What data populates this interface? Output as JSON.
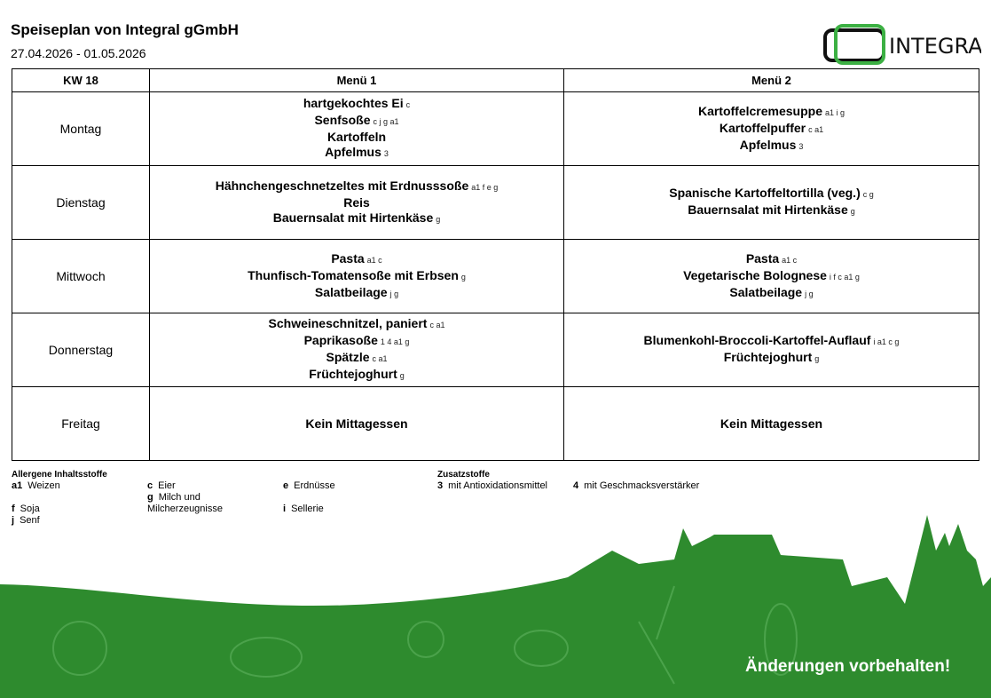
{
  "header": {
    "title": "Speiseplan von Integral gGmbH",
    "dates": "27.04.2026 - 01.05.2026",
    "logo_text": "INTEGRAL"
  },
  "table": {
    "columns": [
      "KW 18",
      "Menü 1",
      "Menü 2"
    ],
    "rows": [
      {
        "day": "Montag",
        "menu1": [
          {
            "name": "hartgekochtes Ei",
            "al": "c"
          },
          {
            "name": "Senfsoße",
            "al": "c j g a1"
          },
          {
            "name": "Kartoffeln",
            "al": ""
          },
          {
            "name": "Apfelmus",
            "al": "3"
          }
        ],
        "menu2": [
          {
            "name": "Kartoffelcremesuppe",
            "al": "a1 i g"
          },
          {
            "name": "Kartoffelpuffer",
            "al": "c a1"
          },
          {
            "name": "Apfelmus",
            "al": "3"
          }
        ]
      },
      {
        "day": "Dienstag",
        "menu1": [
          {
            "name": "Hähnchengeschnetzeltes mit Erdnusssoße",
            "al": "a1 f e g"
          },
          {
            "name": "Reis",
            "al": ""
          },
          {
            "name": "Bauernsalat mit Hirtenkäse",
            "al": "g"
          }
        ],
        "menu2": [
          {
            "name": "Spanische Kartoffeltortilla (veg.)",
            "al": "c g"
          },
          {
            "name": "Bauernsalat mit Hirtenkäse",
            "al": "g"
          }
        ]
      },
      {
        "day": "Mittwoch",
        "menu1": [
          {
            "name": "Pasta",
            "al": "a1 c"
          },
          {
            "name": "Thunfisch-Tomatensoße mit Erbsen",
            "al": "g"
          },
          {
            "name": "Salatbeilage",
            "al": "j g"
          }
        ],
        "menu2": [
          {
            "name": "Pasta",
            "al": "a1 c"
          },
          {
            "name": "Vegetarische Bolognese",
            "al": "i f c a1 g"
          },
          {
            "name": "Salatbeilage",
            "al": "j g"
          }
        ]
      },
      {
        "day": "Donnerstag",
        "menu1": [
          {
            "name": "Schweineschnitzel, paniert",
            "al": "c a1"
          },
          {
            "name": "Paprikasoße",
            "al": "1 4 a1 g"
          },
          {
            "name": "Spätzle",
            "al": "c a1"
          },
          {
            "name": "Früchtejoghurt",
            "al": "g"
          }
        ],
        "menu2": [
          {
            "name": "Blumenkohl-Broccoli-Kartoffel-Auflauf",
            "al": "i a1 c g"
          },
          {
            "name": "Früchtejoghurt",
            "al": "g"
          }
        ]
      },
      {
        "day": "Freitag",
        "menu1": [
          {
            "name": "Kein Mittagessen",
            "al": ""
          }
        ],
        "menu2": [
          {
            "name": "Kein Mittagessen",
            "al": ""
          }
        ]
      }
    ]
  },
  "legend": {
    "allergens_title": "Allergene Inhaltsstoffe",
    "allergens": [
      {
        "code": "a1",
        "label": "Weizen"
      },
      {
        "code": "c",
        "label": "Eier"
      },
      {
        "code": "e",
        "label": "Erdnüsse"
      },
      {
        "code": "g",
        "label": "Milch und Milcherzeugnisse"
      },
      {
        "code": "f",
        "label": "Soja"
      },
      {
        "code": "i",
        "label": "Sellerie"
      },
      {
        "code": "j",
        "label": "Senf"
      }
    ],
    "additives_title": "Zusatzstoffe",
    "additives": [
      {
        "code": "3",
        "label": "mit Antioxidationsmittel"
      },
      {
        "code": "4",
        "label": "mit Geschmacksverstärker"
      }
    ]
  },
  "footer": {
    "note": "Änderungen vorbehalten!"
  },
  "colors": {
    "green": "#2e8b2e",
    "logo_green": "#3cb043"
  }
}
